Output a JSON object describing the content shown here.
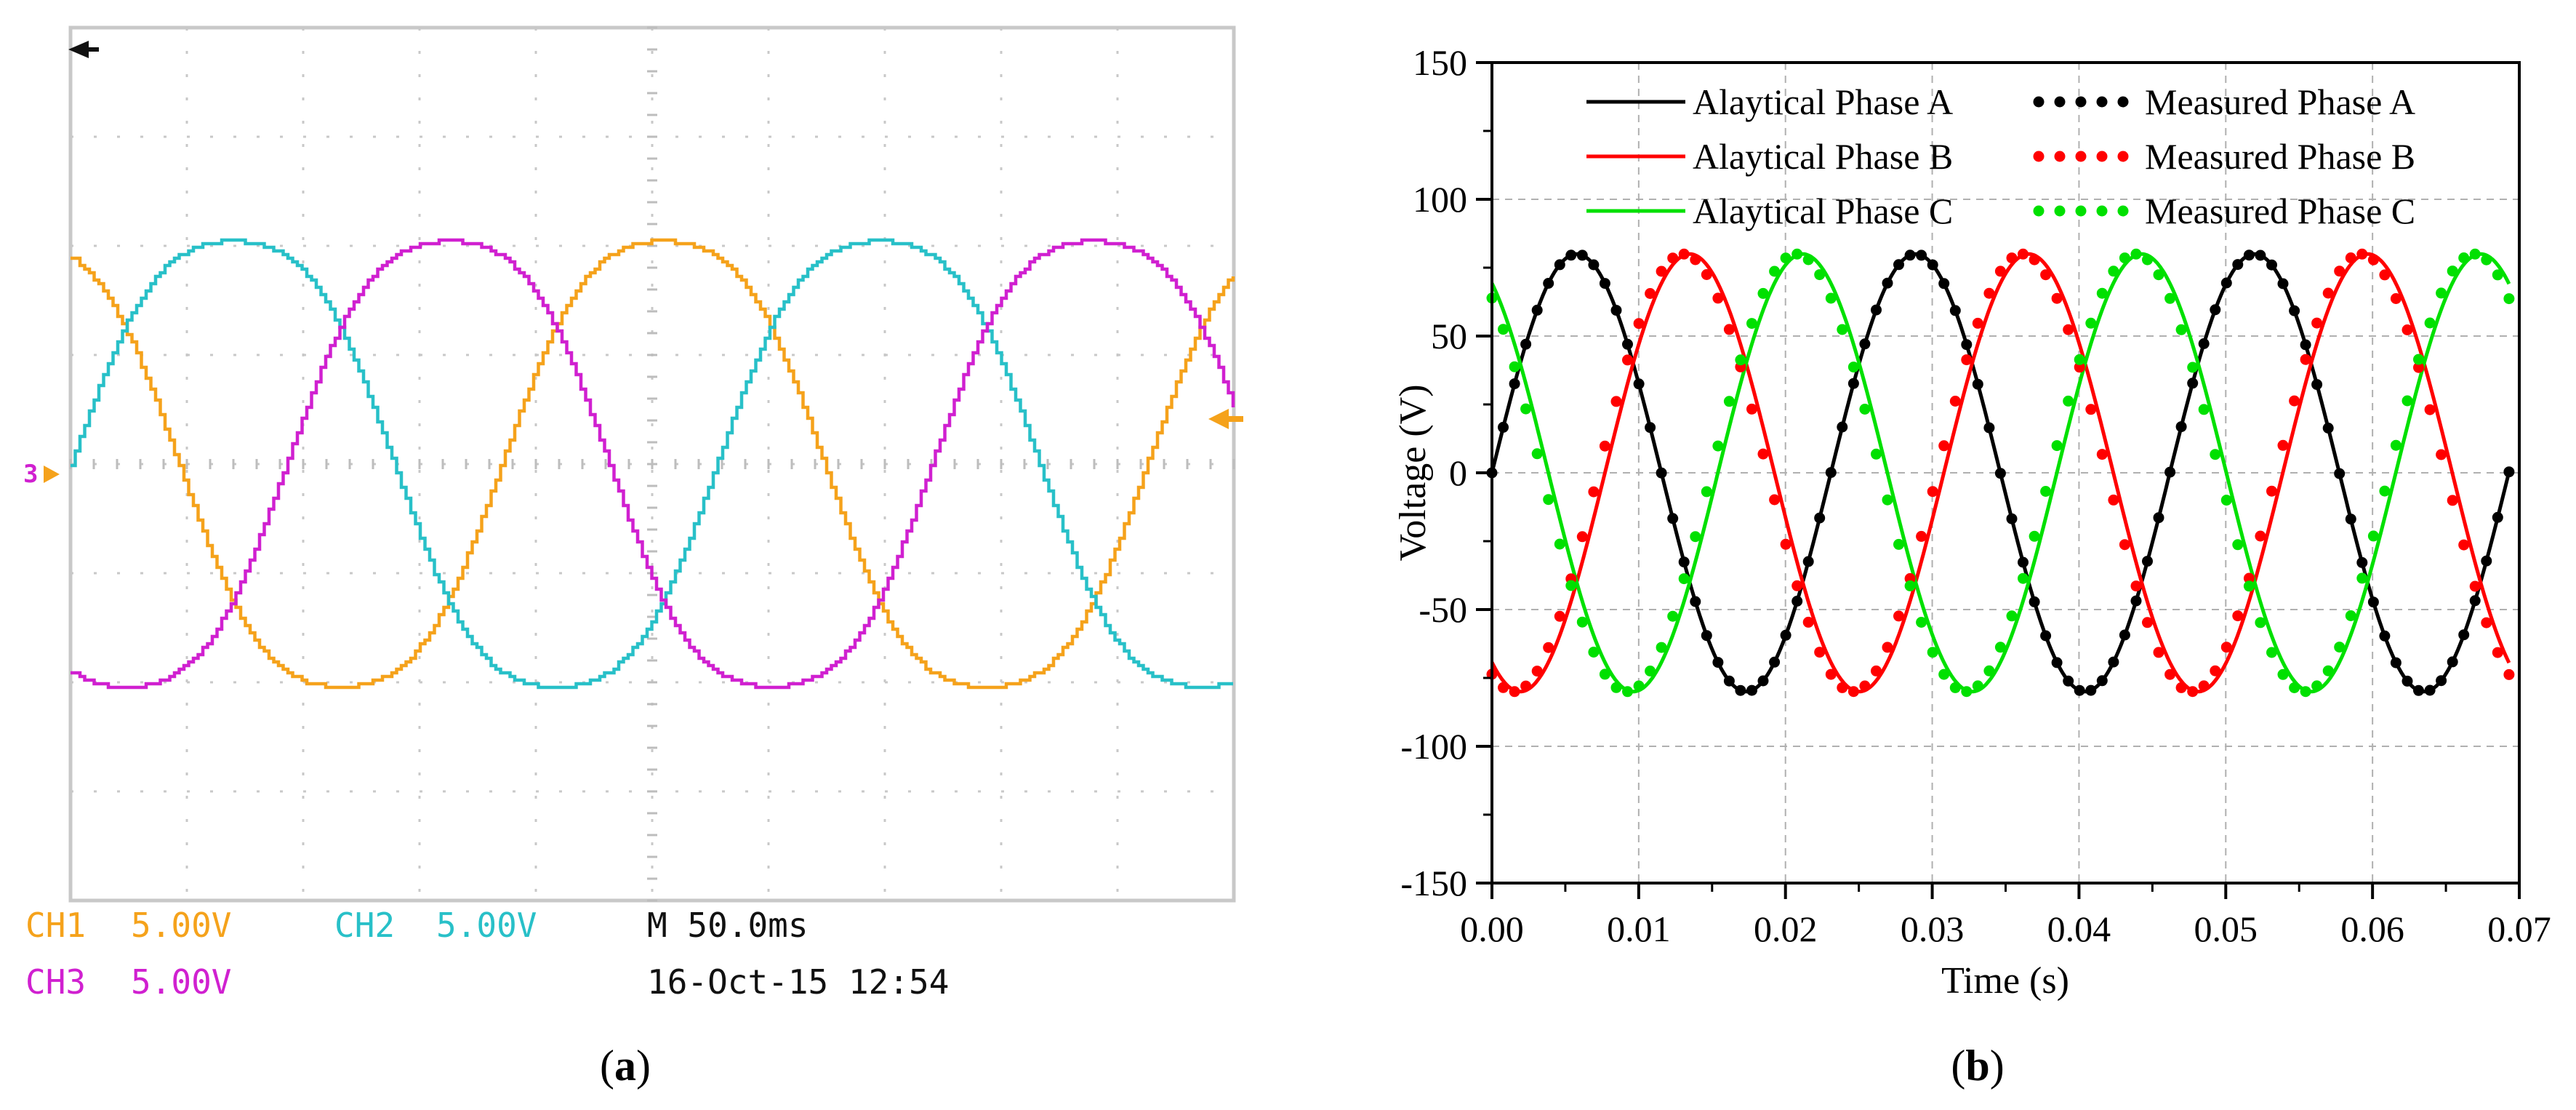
{
  "panel_a": {
    "caption_letter": "a",
    "caption_open": "(",
    "caption_close": ")",
    "scope": {
      "ch1": {
        "label": "CH1",
        "scale": "5.00V",
        "color": "#f5a21b"
      },
      "ch2": {
        "label": "CH2",
        "scale": "5.00V",
        "color": "#28c0c8"
      },
      "ch3": {
        "label": "CH3",
        "scale": "5.00V",
        "color": "#d020d0"
      },
      "timebase": "M 50.0ms",
      "date": "16-Oct-15 12:54",
      "ref_marker": "3",
      "divisions_x": 10,
      "divisions_y": 8
    }
  },
  "panel_b": {
    "caption_letter": "b",
    "caption_open": "(",
    "caption_close": ")"
  },
  "chart_data": [
    {
      "type": "line",
      "title": "",
      "xlabel": "",
      "ylabel": "",
      "xlim": [
        0,
        10
      ],
      "ylim": [
        -4,
        4
      ],
      "grid": true,
      "series": [
        {
          "name": "CH1",
          "color": "#f5a21b",
          "amplitude_div": 2.35,
          "period_div": 5.55,
          "phase_deg": 120
        },
        {
          "name": "CH2",
          "color": "#28c0c8",
          "amplitude_div": 2.35,
          "period_div": 5.55,
          "phase_deg": 0
        },
        {
          "name": "CH3",
          "color": "#d020d0",
          "amplitude_div": 2.35,
          "period_div": 5.55,
          "phase_deg": -120
        }
      ]
    },
    {
      "type": "line",
      "title": "",
      "xlabel": "Time (s)",
      "ylabel": "Voltage (V)",
      "xlim": [
        0,
        0.07
      ],
      "ylim": [
        -150,
        150
      ],
      "xticks": [
        "0.00",
        "0.01",
        "0.02",
        "0.03",
        "0.04",
        "0.05",
        "0.06",
        "0.07"
      ],
      "yticks": [
        "150",
        "100",
        "50",
        "0",
        "-50",
        "-100",
        "-150"
      ],
      "grid": true,
      "legend_position": "top",
      "amplitude_V": 80,
      "frequency_Hz": 43.3,
      "x_end": 0.0693,
      "series": [
        {
          "name": "Alaytical Phase A",
          "style": "solid",
          "color": "#000000",
          "phase_deg": 0
        },
        {
          "name": "Measured Phase A",
          "style": "dots",
          "color": "#000000",
          "phase_deg": 0
        },
        {
          "name": "Alaytical Phase B",
          "style": "solid",
          "color": "#ff0000",
          "phase_deg": -120
        },
        {
          "name": "Measured Phase B",
          "style": "dots",
          "color": "#ff0000",
          "phase_deg": -113
        },
        {
          "name": "Alaytical Phase C",
          "style": "solid",
          "color": "#00e000",
          "phase_deg": 120
        },
        {
          "name": "Measured Phase C",
          "style": "dots",
          "color": "#00e000",
          "phase_deg": 127
        }
      ]
    }
  ]
}
